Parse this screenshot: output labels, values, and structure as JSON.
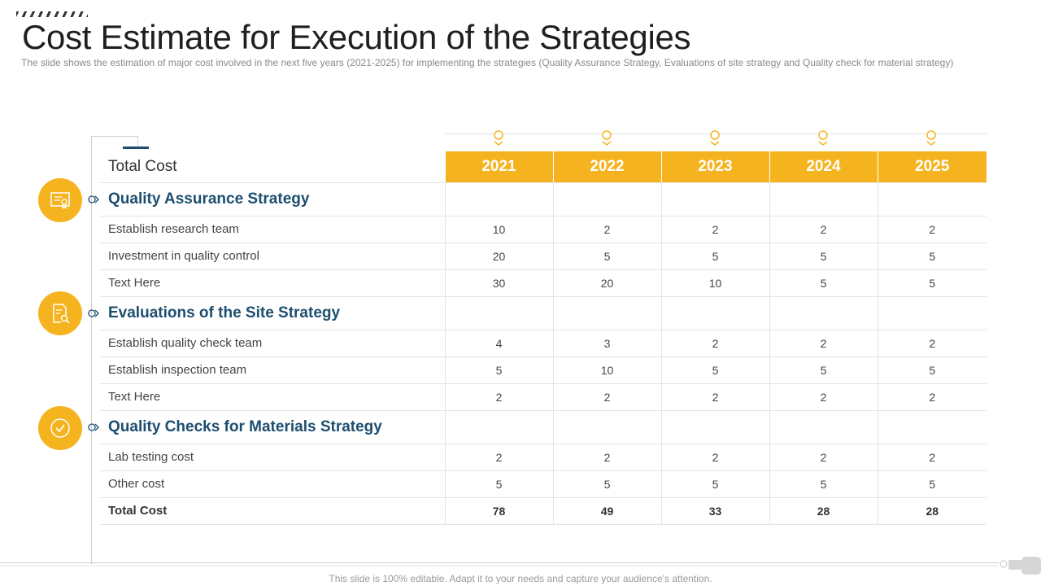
{
  "title": "Cost Estimate for Execution of the Strategies",
  "subtitle": "The slide shows the estimation of major cost involved  in the next five years (2021-2025)  for implementing the strategies (Quality Assurance Strategy, Evaluations  of site strategy and Quality check for material strategy)",
  "footer": "This slide is 100% editable. Adapt it to your needs and capture your audience's attention.",
  "colors": {
    "accent": "#f5b41f",
    "heading": "#1d4e6f"
  },
  "table": {
    "corner_label": "Total Cost",
    "years": [
      "2021",
      "2022",
      "2023",
      "2024",
      "2025"
    ],
    "sections": [
      {
        "title": "Quality Assurance Strategy",
        "icon": "certificate-icon",
        "rows": [
          {
            "label": "Establish research team",
            "values": [
              "10",
              "2",
              "2",
              "2",
              "2"
            ]
          },
          {
            "label": "Investment in quality control",
            "values": [
              "20",
              "5",
              "5",
              "5",
              "5"
            ]
          },
          {
            "label": "Text Here",
            "values": [
              "30",
              "20",
              "10",
              "5",
              "5"
            ]
          }
        ]
      },
      {
        "title": "Evaluations of the Site Strategy",
        "icon": "document-search-icon",
        "rows": [
          {
            "label": "Establish quality check team",
            "values": [
              "4",
              "3",
              "2",
              "2",
              "2"
            ]
          },
          {
            "label": "Establish inspection team",
            "values": [
              "5",
              "10",
              "5",
              "5",
              "5"
            ]
          },
          {
            "label": "Text Here",
            "values": [
              "2",
              "2",
              "2",
              "2",
              "2"
            ]
          }
        ]
      },
      {
        "title": "Quality Checks for Materials Strategy",
        "icon": "check-circle-icon",
        "rows": [
          {
            "label": "Lab testing cost",
            "values": [
              "2",
              "2",
              "2",
              "2",
              "2"
            ]
          },
          {
            "label": "Other cost",
            "values": [
              "5",
              "5",
              "5",
              "5",
              "5"
            ]
          }
        ]
      }
    ],
    "total": {
      "label": "Total Cost",
      "values": [
        "78",
        "49",
        "33",
        "28",
        "28"
      ]
    }
  }
}
